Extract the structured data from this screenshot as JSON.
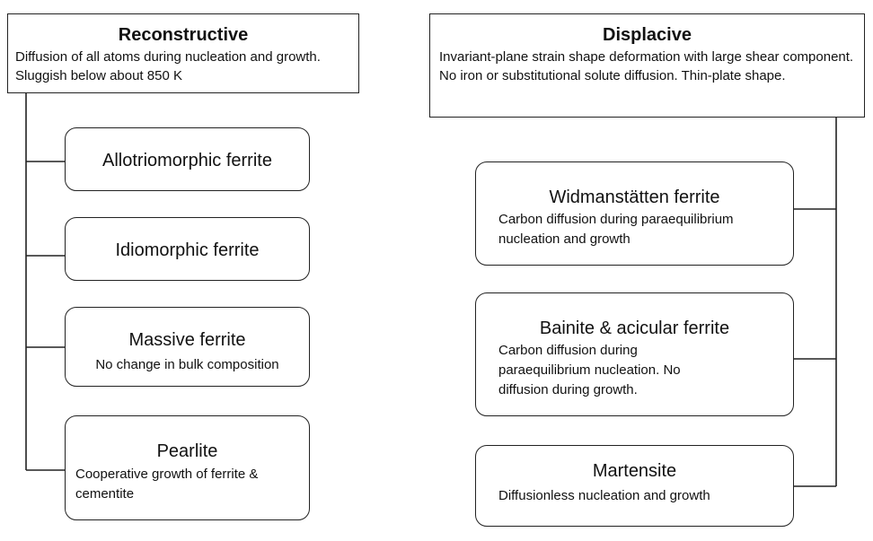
{
  "reconstructive": {
    "title": "Reconstructive",
    "description": "Diffusion of all atoms during nucleation and growth.  Sluggish below about 850 K",
    "items": [
      {
        "title": "Allotriomorphic ferrite",
        "description": ""
      },
      {
        "title": "Idiomorphic ferrite",
        "description": ""
      },
      {
        "title": "Massive ferrite",
        "description": "No change in bulk composition"
      },
      {
        "title": "Pearlite",
        "description": "Cooperative growth of ferrite & cementite"
      }
    ]
  },
  "displacive": {
    "title": "Displacive",
    "description": "Invariant-plane strain shape deformation with large shear component. No iron or substitutional solute diffusion. Thin-plate shape.",
    "items": [
      {
        "title": "Widmanstätten ferrite",
        "description": "Carbon diffusion during paraequilibrium nucleation and growth"
      },
      {
        "title": "Bainite & acicular ferrite",
        "description": "Carbon diffusion during paraequilibrium nucleation. No diffusion during growth."
      },
      {
        "title": "Martensite",
        "description": "Diffusionless nucleation and growth"
      }
    ]
  }
}
